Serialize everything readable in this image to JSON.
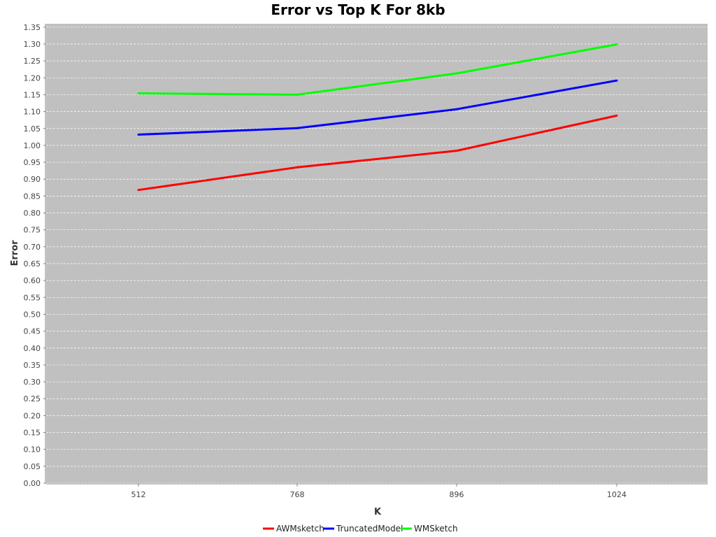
{
  "chart_data": {
    "type": "line",
    "title": "Error vs Top K For 8kb",
    "xlabel": "K",
    "ylabel": "Error",
    "categories": [
      "512",
      "768",
      "896",
      "1024"
    ],
    "ylim": [
      0,
      1.36
    ],
    "yticks": [
      "0.00",
      "0.05",
      "0.10",
      "0.15",
      "0.20",
      "0.25",
      "0.30",
      "0.35",
      "0.40",
      "0.45",
      "0.50",
      "0.55",
      "0.60",
      "0.65",
      "0.70",
      "0.75",
      "0.80",
      "0.85",
      "0.90",
      "0.95",
      "1.00",
      "1.05",
      "1.10",
      "1.15",
      "1.20",
      "1.25",
      "1.30",
      "1.35"
    ],
    "grid": true,
    "legend_position": "bottom",
    "plot_background": "#c0c0c0",
    "series": [
      {
        "name": "AWMsketch",
        "color": "#ff0000",
        "values": [
          0.868,
          0.935,
          0.984,
          1.088
        ]
      },
      {
        "name": "TruncatedModel",
        "color": "#0000ff",
        "values": [
          1.032,
          1.051,
          1.107,
          1.192
        ]
      },
      {
        "name": "WMSketch",
        "color": "#00ff00",
        "values": [
          1.154,
          1.15,
          1.213,
          1.299
        ]
      }
    ]
  }
}
